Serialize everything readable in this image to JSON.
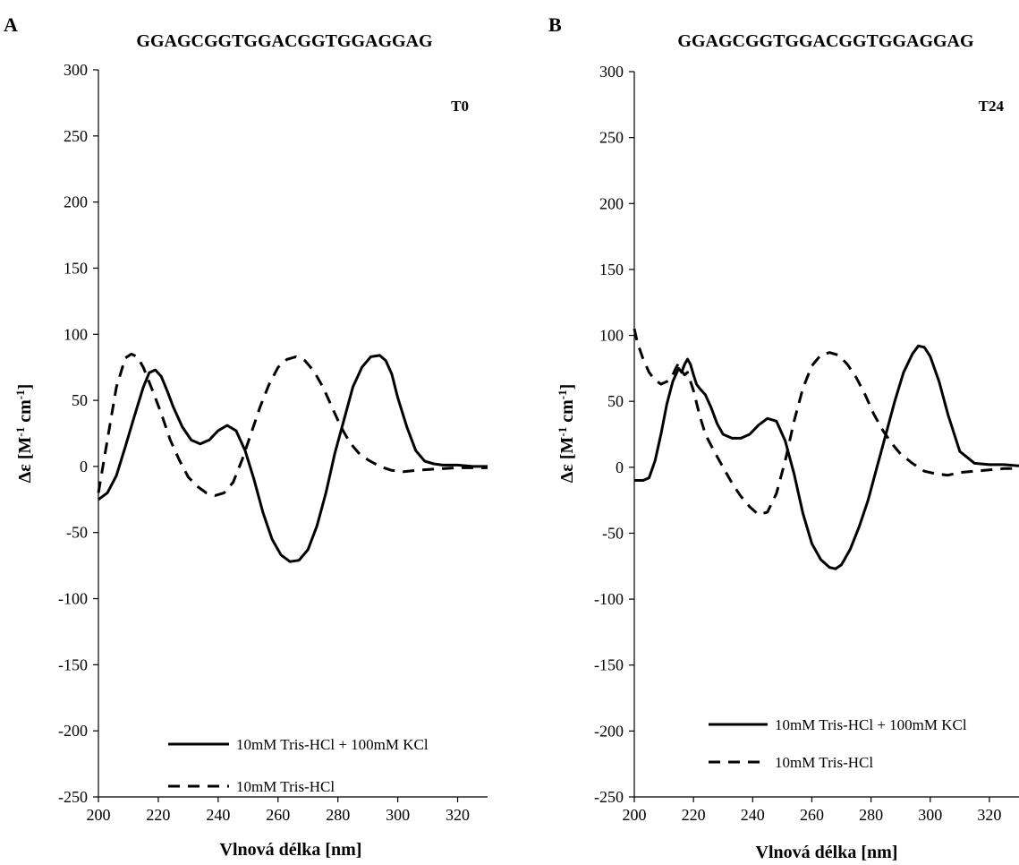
{
  "chart_data": [
    {
      "type": "line",
      "panel_letter": "A",
      "title": "GGAGCGGTGGACGGTGGAGGAG",
      "corner_label": "T0",
      "xlabel": "Vlnová délka [nm]",
      "ylabel": "Δε [M-1 cm-1]",
      "xlim": [
        200,
        330
      ],
      "ylim": [
        -250,
        300
      ],
      "xticks": [
        "200",
        "220",
        "240",
        "260",
        "280",
        "300",
        "320"
      ],
      "yticks": [
        "300",
        "250",
        "200",
        "150",
        "100",
        "50",
        "0",
        "-50",
        "-100",
        "-150",
        "-200",
        "-250"
      ],
      "grid": false,
      "legend_position": "bottom-right",
      "series": [
        {
          "name": "10mM Tris-HCl + 100mM KCl",
          "style": "solid",
          "color": "#000000",
          "x": [
            200,
            203,
            206,
            209,
            212,
            215,
            217,
            219,
            221,
            223,
            225,
            228,
            231,
            234,
            237,
            240,
            243,
            246,
            249,
            252,
            255,
            258,
            261,
            264,
            267,
            270,
            273,
            276,
            279,
            282,
            285,
            288,
            291,
            294,
            296,
            298,
            300,
            303,
            306,
            309,
            312,
            315,
            320,
            325,
            330
          ],
          "y": [
            -25,
            -20,
            -7,
            15,
            38,
            60,
            71,
            73,
            68,
            57,
            45,
            30,
            20,
            17,
            20,
            27,
            31,
            27,
            12,
            -10,
            -35,
            -55,
            -67,
            -72,
            -71,
            -63,
            -45,
            -20,
            10,
            35,
            60,
            75,
            83,
            84,
            80,
            70,
            52,
            30,
            12,
            4,
            2,
            1,
            1,
            0,
            0
          ]
        },
        {
          "name": "10mM Tris-HCl",
          "style": "dashed",
          "color": "#000000",
          "x": [
            200,
            203,
            206,
            209,
            211,
            213,
            215,
            218,
            221,
            224,
            227,
            230,
            233,
            236,
            239,
            242,
            245,
            248,
            251,
            254,
            257,
            260,
            263,
            266,
            269,
            272,
            275,
            278,
            281,
            284,
            287,
            290,
            294,
            298,
            302,
            306,
            312,
            320,
            330
          ],
          "y": [
            -20,
            20,
            60,
            82,
            85,
            83,
            75,
            58,
            40,
            20,
            5,
            -8,
            -15,
            -20,
            -22,
            -20,
            -12,
            5,
            25,
            45,
            62,
            75,
            81,
            83,
            80,
            72,
            60,
            45,
            30,
            18,
            10,
            5,
            0,
            -3,
            -4,
            -3,
            -2,
            -1,
            -1
          ]
        }
      ]
    },
    {
      "type": "line",
      "panel_letter": "B",
      "title": "GGAGCGGTGGACGGTGGAGGAG",
      "corner_label": "T24",
      "xlabel": "Vlnová délka [nm]",
      "ylabel": "Δε [M-1 cm-1]",
      "xlim": [
        200,
        330
      ],
      "ylim": [
        -250,
        300
      ],
      "xticks": [
        "200",
        "220",
        "240",
        "260",
        "280",
        "300",
        "320"
      ],
      "yticks": [
        "300",
        "250",
        "200",
        "150",
        "100",
        "50",
        "0",
        "-50",
        "-100",
        "-150",
        "-200",
        "-250"
      ],
      "grid": false,
      "legend_position": "bottom-right",
      "series": [
        {
          "name": "10mM Tris-HCl + 100mM KCl",
          "style": "solid",
          "color": "#000000",
          "x": [
            200,
            203,
            205,
            207,
            209,
            211,
            213,
            214,
            215,
            216,
            217,
            218,
            219,
            220,
            221,
            222,
            224,
            226,
            228,
            230,
            233,
            236,
            239,
            242,
            245,
            248,
            251,
            254,
            257,
            260,
            263,
            266,
            268,
            270,
            273,
            276,
            279,
            282,
            285,
            288,
            291,
            294,
            296,
            298,
            300,
            303,
            306,
            310,
            315,
            320,
            325,
            330
          ],
          "y": [
            -10,
            -10,
            -8,
            5,
            25,
            48,
            65,
            70,
            75,
            72,
            78,
            82,
            78,
            70,
            63,
            60,
            55,
            45,
            33,
            25,
            22,
            22,
            25,
            32,
            37,
            35,
            20,
            -5,
            -35,
            -58,
            -70,
            -76,
            -77,
            -74,
            -62,
            -45,
            -25,
            0,
            25,
            50,
            72,
            86,
            92,
            91,
            84,
            65,
            40,
            12,
            3,
            2,
            2,
            1
          ]
        },
        {
          "name": "10mM Tris-HCl",
          "style": "dashed",
          "color": "#000000",
          "x": [
            200,
            201,
            203,
            205,
            207,
            209,
            211,
            213,
            214,
            215,
            216,
            217,
            218,
            220,
            222,
            224,
            227,
            230,
            233,
            236,
            239,
            242,
            245,
            248,
            251,
            254,
            257,
            260,
            263,
            266,
            269,
            272,
            275,
            278,
            281,
            284,
            287,
            290,
            294,
            298,
            302,
            306,
            310,
            315,
            320,
            325,
            330
          ],
          "y": [
            105,
            95,
            82,
            72,
            66,
            63,
            65,
            70,
            75,
            79,
            73,
            70,
            72,
            58,
            40,
            25,
            12,
            0,
            -12,
            -22,
            -30,
            -36,
            -34,
            -20,
            5,
            35,
            60,
            77,
            85,
            87,
            85,
            78,
            68,
            55,
            40,
            28,
            18,
            10,
            3,
            -3,
            -5,
            -6,
            -4,
            -3,
            -2,
            -1,
            -1
          ]
        }
      ]
    }
  ]
}
